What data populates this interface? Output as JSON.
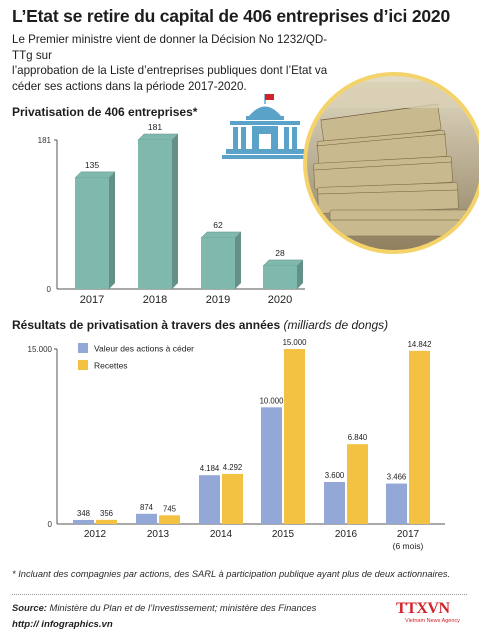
{
  "header": {
    "title": "L’Etat se retire du capital de 406 entreprises d’ici 2020",
    "intro_lines": [
      "Le Premier ministre vient de donner la Décision No 1232/QD-TTg sur",
      "l’approbation de la Liste d’entreprises publiques dont l’Etat va",
      "céder ses actions dans la période 2017-2020."
    ]
  },
  "section1": {
    "title": "Privatisation de 406 entreprises*"
  },
  "section2": {
    "title": "Résultats de privatisation à travers des années",
    "unit": "(milliards de dongs)"
  },
  "chart_data": [
    {
      "type": "bar",
      "title": "Privatisation de 406 entreprises*",
      "categories": [
        "2017",
        "2018",
        "2019",
        "2020"
      ],
      "values": [
        135,
        181,
        62,
        28
      ],
      "value_labels": [
        "135",
        "181",
        "62",
        "28"
      ],
      "y_ticks": [
        "181",
        "0"
      ],
      "ylim": [
        0,
        181
      ],
      "color": "#7fb9ad"
    },
    {
      "type": "bar",
      "title": "Résultats de privatisation à travers des années",
      "unit": "(milliards de dongs)",
      "categories": [
        "2012",
        "2013",
        "2014",
        "2015",
        "2016",
        "2017"
      ],
      "category_sublabels": [
        "",
        "",
        "",
        "",
        "",
        "(6 mois)"
      ],
      "y_ticks": [
        "15.000",
        "0"
      ],
      "ylim": [
        0,
        15000
      ],
      "legend_position": "top-left",
      "series": [
        {
          "name": "Valeur des actions à céder",
          "color": "#93a8d6",
          "values": [
            348,
            874,
            4184,
            10000,
            3600,
            3466
          ],
          "labels": [
            "348",
            "874",
            "4.184",
            "10.000",
            "3.600",
            "3.466"
          ]
        },
        {
          "name": "Recettes",
          "color": "#f4c243",
          "values": [
            356,
            745,
            4292,
            15000,
            6840,
            14842
          ],
          "labels": [
            "356",
            "745",
            "4.292",
            "15.000",
            "6.840",
            "14.842"
          ]
        }
      ]
    }
  ],
  "footer": {
    "footnote": "* Incluant des compagnies par actions, des SARL à participation publique ayant plus de deux actionnaires.",
    "source_label": "Source:",
    "source_text": " Ministère du Plan et de l’Investissement; ministère des Finances",
    "url": "http:// infographics.vn",
    "agency": "TTXVN",
    "agency_sub": "Vietnam News Agency"
  },
  "colors": {
    "bar1": "#7fb9ad",
    "bar1_dark": "#5f9488",
    "series_blue": "#93a8d6",
    "series_yellow": "#f4c243",
    "photo_ring": "#f3d36a",
    "icon_blue": "#5aa2c8",
    "flag_red": "#d2232a"
  }
}
